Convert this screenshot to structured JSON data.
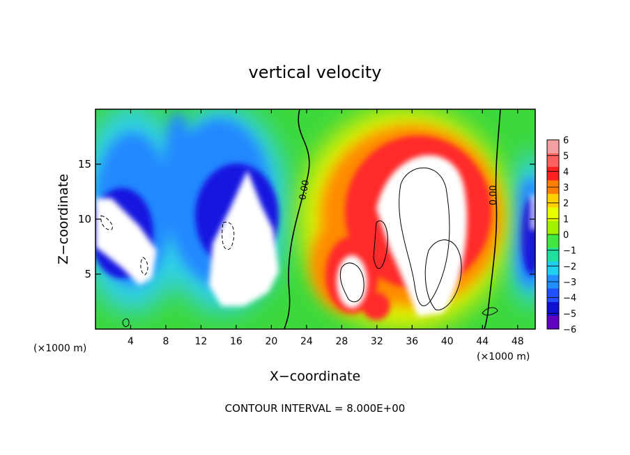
{
  "chart_data": {
    "type": "heatmap",
    "title": "vertical velocity",
    "xlabel": "X−coordinate",
    "ylabel": "Z−coordinate",
    "x_unit": "(×1000 m)",
    "y_unit": "(×1000 m)",
    "footer": "CONTOUR INTERVAL = 8.000E+00",
    "xlim": [
      0,
      50
    ],
    "ylim": [
      0,
      20
    ],
    "x_ticks": [
      4,
      8,
      12,
      16,
      20,
      24,
      28,
      32,
      36,
      40,
      44,
      48
    ],
    "x_tick_labels": [
      "4",
      "8",
      "12",
      "16",
      "20",
      "24",
      "28",
      "32",
      "36",
      "40",
      "44",
      "48"
    ],
    "y_ticks": [
      5,
      10,
      15
    ],
    "y_tick_labels": [
      "5",
      "10",
      "15"
    ],
    "colorbar": {
      "min": -6,
      "max": 6,
      "tick_labels": [
        "6",
        "5",
        "4",
        "3",
        "2",
        "1",
        "0",
        "−1",
        "−2",
        "−3",
        "−4",
        "−5",
        "−6"
      ],
      "colors": [
        "#f4a0a0",
        "#ff6060",
        "#ff2020",
        "#ff8000",
        "#ffd000",
        "#e8ff00",
        "#a0f000",
        "#40e840",
        "#20e0a0",
        "#20d0f0",
        "#2090ff",
        "#2050ff",
        "#1010d0",
        "#6000c0"
      ]
    },
    "contour_labels": [
      "0.00",
      "0.00"
    ],
    "features": [
      {
        "name": "downdraft-left",
        "x": [
          0,
          8
        ],
        "z": [
          4,
          11
        ],
        "w": -6
      },
      {
        "name": "downdraft-center",
        "x": [
          12,
          20
        ],
        "z": [
          3,
          12
        ],
        "w": -6
      },
      {
        "name": "updraft-main",
        "x": [
          28,
          42
        ],
        "z": [
          2,
          15
        ],
        "w": 6
      },
      {
        "name": "downdraft-right",
        "x": [
          47,
          50
        ],
        "z": [
          3,
          11
        ],
        "w": -6
      }
    ]
  }
}
